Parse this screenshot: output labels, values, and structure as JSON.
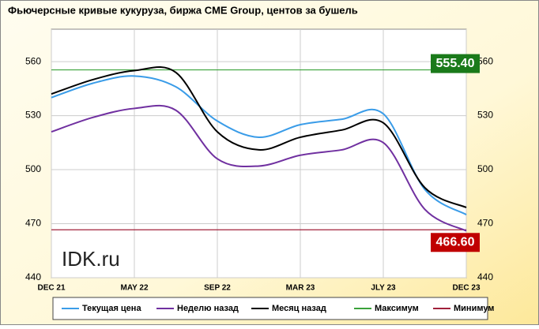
{
  "chart_data": {
    "type": "line",
    "title": "Фьючерсные  кривые  кукуруза, биржа CME  Group,  центов за бушель",
    "watermark": "IDK.ru",
    "categories": [
      "DEC 21",
      null,
      "MAY 22",
      null,
      "SEP 22",
      null,
      "MAR 23",
      null,
      "JLY 23",
      null,
      "DEC 23"
    ],
    "series": [
      {
        "name": "Текущая цена",
        "color": "#3a9ce8",
        "values": [
          540,
          548,
          552,
          546,
          527,
          518,
          525,
          528,
          531,
          489,
          475
        ]
      },
      {
        "name": "Неделю назад",
        "color": "#7030a0",
        "values": [
          521,
          529,
          534,
          533,
          506,
          502,
          508,
          511,
          515,
          478,
          466
        ]
      },
      {
        "name": "Месяц  назад",
        "color": "#000000",
        "values": [
          542,
          550,
          555,
          554,
          521,
          511,
          518,
          522,
          526,
          490,
          479
        ]
      }
    ],
    "lines": [
      {
        "name": "Максимум",
        "color": "#3aa23a",
        "value": 555.4,
        "value_label": "555.40",
        "label_color": "#1a7a1a"
      },
      {
        "name": "Минимум",
        "color": "#a0203a",
        "value": 466.6,
        "value_label": "466.60",
        "label_color": "#c00000"
      }
    ],
    "ylim": [
      440,
      578
    ],
    "yticks": [
      440,
      470,
      500,
      530,
      560
    ],
    "grid": true
  }
}
